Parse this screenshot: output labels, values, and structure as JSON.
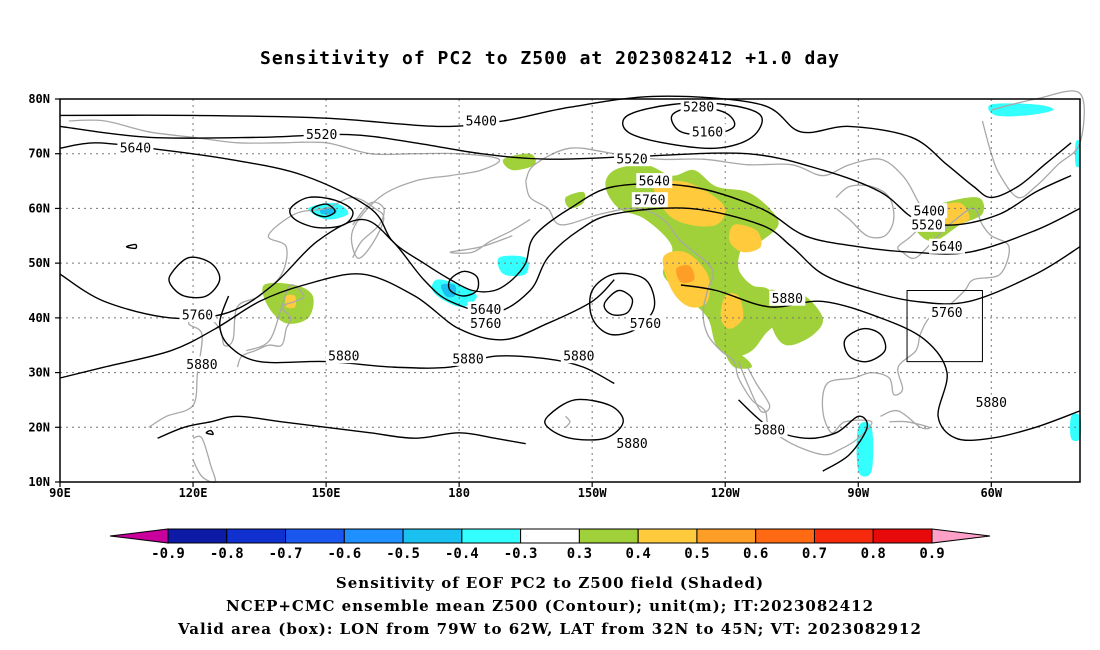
{
  "title": "Sensitivity of PC2 to Z500 at 2023082412 +1.0 day",
  "map": {
    "lat_labels": [
      "80N",
      "70N",
      "60N",
      "50N",
      "40N",
      "30N",
      "20N",
      "10N"
    ],
    "lon_labels": [
      "90E",
      "120E",
      "150E",
      "180",
      "150W",
      "120W",
      "90W",
      "60W"
    ],
    "lat_values": [
      80,
      70,
      60,
      50,
      40,
      30,
      20,
      10
    ],
    "lon_values": [
      90,
      120,
      150,
      180,
      210,
      240,
      270,
      300
    ],
    "extent": {
      "lon_min": 90,
      "lon_max": 320,
      "lat_min": 10,
      "lat_max": 80
    },
    "grid": true,
    "contour_labels": [
      {
        "text": "5400",
        "lon": 185,
        "lat": 76
      },
      {
        "text": "5280",
        "lon": 234,
        "lat": 78.5
      },
      {
        "text": "5160",
        "lon": 236,
        "lat": 74
      },
      {
        "text": "5640",
        "lon": 107,
        "lat": 71
      },
      {
        "text": "5520",
        "lon": 149,
        "lat": 73.5
      },
      {
        "text": "5520",
        "lon": 219,
        "lat": 69
      },
      {
        "text": "5640",
        "lon": 224,
        "lat": 65
      },
      {
        "text": "5760",
        "lon": 223,
        "lat": 61.5
      },
      {
        "text": "5400",
        "lon": 286,
        "lat": 59.5
      },
      {
        "text": "5520",
        "lon": 285.5,
        "lat": 57
      },
      {
        "text": "5640",
        "lon": 290,
        "lat": 53
      },
      {
        "text": "5760",
        "lon": 290,
        "lat": 41
      },
      {
        "text": "5880",
        "lon": 254,
        "lat": 43.5
      },
      {
        "text": "5640",
        "lon": 186,
        "lat": 41.5
      },
      {
        "text": "5760",
        "lon": 186,
        "lat": 39
      },
      {
        "text": "5760",
        "lon": 222,
        "lat": 39
      },
      {
        "text": "5760",
        "lon": 121,
        "lat": 40.5
      },
      {
        "text": "5880",
        "lon": 154,
        "lat": 33
      },
      {
        "text": "5880",
        "lon": 182,
        "lat": 32.5
      },
      {
        "text": "5880",
        "lon": 207,
        "lat": 33
      },
      {
        "text": "5880",
        "lon": 122,
        "lat": 31.5
      },
      {
        "text": "5880",
        "lon": 219,
        "lat": 17
      },
      {
        "text": "5880",
        "lon": 250,
        "lat": 19.5
      },
      {
        "text": "5880",
        "lon": 300,
        "lat": 24.5
      }
    ],
    "valid_box": {
      "lon_west": 281,
      "lon_east": 298,
      "lat_south": 32,
      "lat_north": 45
    }
  },
  "colorbar": {
    "labels": [
      "-0.9",
      "-0.8",
      "-0.7",
      "-0.6",
      "-0.5",
      "-0.4",
      "-0.3",
      "0.3",
      "0.4",
      "0.5",
      "0.6",
      "0.7",
      "0.8",
      "0.9"
    ],
    "colors": [
      "#c8009c",
      "#0d1aa6",
      "#1030d0",
      "#1957ef",
      "#1e90ff",
      "#19c0f0",
      "#33ffff",
      "#ffffff",
      "#a0d13a",
      "#ffcb3d",
      "#ff9e27",
      "#ff6a12",
      "#f52a0c",
      "#e80a0a",
      "#ffa0c8"
    ]
  },
  "footer": {
    "line1": "Sensitivity of EOF PC2 to Z500 field (Shaded)",
    "line2": "NCEP+CMC ensemble mean Z500 (Contour); unit(m); IT:2023082412",
    "line3": "Valid area (box): LON from 79W to 62W, LAT from 32N to 45N; VT: 2023082912"
  }
}
